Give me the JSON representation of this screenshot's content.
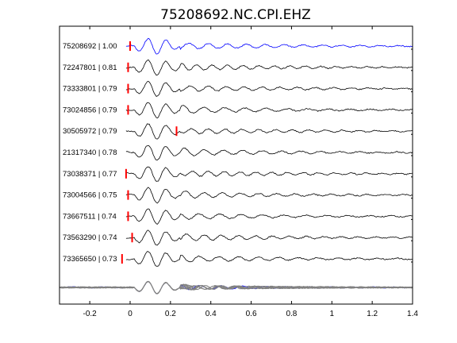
{
  "chart_data": {
    "type": "line",
    "title": "75208692.NC.CPI.EHZ",
    "xlabel": "",
    "ylabel": "",
    "xlim": [
      -0.35,
      1.4
    ],
    "xticks": [
      -0.2,
      0,
      0.2,
      0.4,
      0.6,
      0.8,
      1,
      1.2,
      1.4
    ],
    "xtick_labels": [
      "-0.2",
      "0",
      "0.2",
      "0.4",
      "0.6",
      "0.8",
      "1",
      "1.2",
      "1.4"
    ],
    "grid": false,
    "colors": {
      "reference": "#0000ff",
      "trace": "#000000",
      "pick": "#ff0000",
      "stack": "#808080"
    },
    "traces": [
      {
        "label": "75208692 | 1.00",
        "pick_time": 0.0,
        "reference": true
      },
      {
        "label": "72247801 | 0.81",
        "pick_time": -0.01
      },
      {
        "label": "73333801 | 0.79",
        "pick_time": -0.01
      },
      {
        "label": "73024856 | 0.79",
        "pick_time": -0.01
      },
      {
        "label": "30505972 | 0.79",
        "pick_time": 0.23
      },
      {
        "label": "21317340 | 0.78",
        "pick_time": null
      },
      {
        "label": "73038371 | 0.77",
        "pick_time": -0.02
      },
      {
        "label": "73004566 | 0.75",
        "pick_time": -0.01
      },
      {
        "label": "73667511 | 0.74",
        "pick_time": -0.01
      },
      {
        "label": "73563290 | 0.74",
        "pick_time": 0.01
      },
      {
        "label": "73365650 | 0.73",
        "pick_time": -0.04
      }
    ],
    "stack": {
      "description": "overlay of all aligned traces",
      "pick_time": null
    }
  }
}
